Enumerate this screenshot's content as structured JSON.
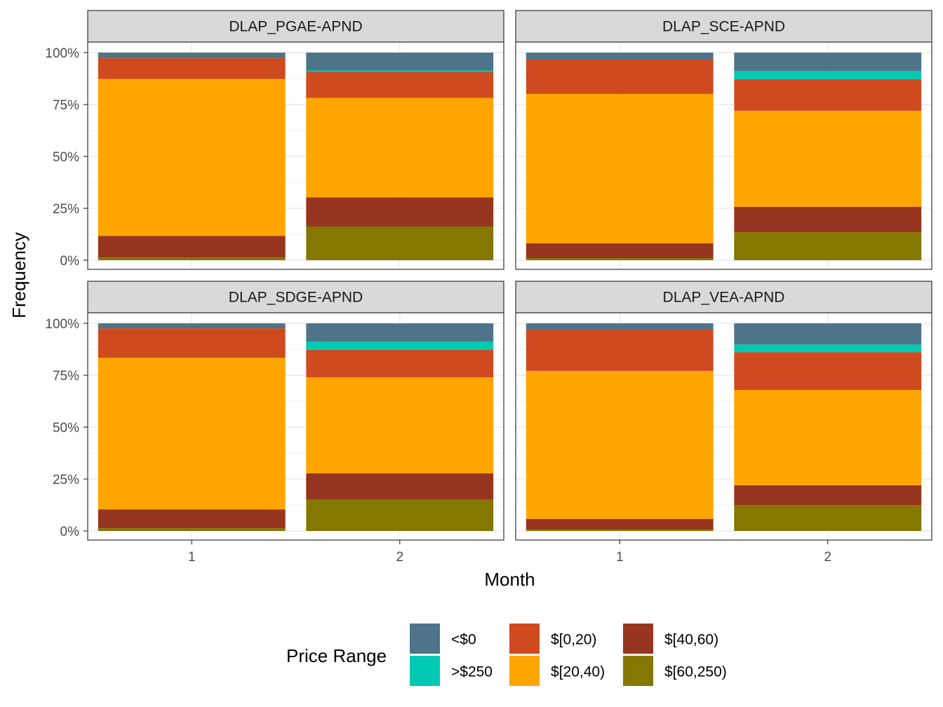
{
  "chart_data": {
    "type": "bar",
    "stacked": true,
    "facet_layout": "2x2",
    "xlabel": "Month",
    "ylabel": "Frequency",
    "y_tick_labels": [
      "0%",
      "25%",
      "50%",
      "75%",
      "100%"
    ],
    "y_ticks": [
      0,
      25,
      50,
      75,
      100
    ],
    "ylim": [
      0,
      100
    ],
    "categories": [
      "1",
      "2"
    ],
    "grid": true,
    "legend": {
      "title": "Price Range",
      "placement": "bottom",
      "entries": [
        {
          "label": "<$0",
          "key": "neg",
          "color": "#4E7489"
        },
        {
          "label": ">$250",
          "key": "gt250",
          "color": "#00C9B3"
        },
        {
          "label": "$[0,20)",
          "key": "r0_20",
          "color": "#D04A1F"
        },
        {
          "label": "$[20,40)",
          "key": "r20_40",
          "color": "#FFA500"
        },
        {
          "label": "$[40,60)",
          "key": "r40_60",
          "color": "#963520"
        },
        {
          "label": "$[60,250)",
          "key": "r60_250",
          "color": "#847800"
        }
      ]
    },
    "stack_order_bottom_to_top": [
      "r60_250",
      "r40_60",
      "r20_40",
      "r0_20",
      "gt250",
      "neg"
    ],
    "facets": [
      {
        "title": "DLAP_PGAE-APND",
        "bars": [
          {
            "x": "1",
            "values": {
              "r60_250": 1.3,
              "r40_60": 10.4,
              "r20_40": 75.6,
              "r0_20": 10.1,
              "gt250": 0,
              "neg": 2.6
            }
          },
          {
            "x": "2",
            "values": {
              "r60_250": 16.2,
              "r40_60": 14.1,
              "r20_40": 47.9,
              "r0_20": 12.5,
              "gt250": 0.7,
              "neg": 8.6
            }
          }
        ]
      },
      {
        "title": "DLAP_SCE-APND",
        "bars": [
          {
            "x": "1",
            "values": {
              "r60_250": 1.0,
              "r40_60": 7.1,
              "r20_40": 72.0,
              "r0_20": 16.5,
              "gt250": 0,
              "neg": 3.4
            }
          },
          {
            "x": "2",
            "values": {
              "r60_250": 13.5,
              "r40_60": 12.2,
              "r20_40": 46.3,
              "r0_20": 15.2,
              "gt250": 3.9,
              "neg": 8.9
            }
          }
        ]
      },
      {
        "title": "DLAP_SDGE-APND",
        "bars": [
          {
            "x": "1",
            "values": {
              "r60_250": 1.3,
              "r40_60": 9.1,
              "r20_40": 73.0,
              "r0_20": 14.2,
              "gt250": 0,
              "neg": 2.4
            }
          },
          {
            "x": "2",
            "values": {
              "r60_250": 15.2,
              "r40_60": 12.5,
              "r20_40": 46.3,
              "r0_20": 13.2,
              "gt250": 4.0,
              "neg": 8.8
            }
          }
        ]
      },
      {
        "title": "DLAP_VEA-APND",
        "bars": [
          {
            "x": "1",
            "values": {
              "r60_250": 0.7,
              "r40_60": 5.1,
              "r20_40": 71.3,
              "r0_20": 19.9,
              "gt250": 0,
              "neg": 3.0
            }
          },
          {
            "x": "2",
            "values": {
              "r60_250": 12.5,
              "r40_60": 9.5,
              "r20_40": 45.9,
              "r0_20": 18.2,
              "gt250": 3.7,
              "neg": 10.2
            }
          }
        ]
      }
    ]
  }
}
